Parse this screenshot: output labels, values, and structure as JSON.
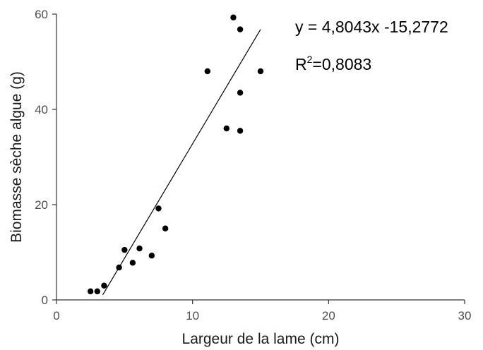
{
  "chart_data": {
    "type": "scatter",
    "title": "",
    "xlabel": "Largeur de la lame (cm)",
    "ylabel": "Biomasse sèche algue (g)",
    "xlim": [
      0,
      30
    ],
    "ylim": [
      0,
      60
    ],
    "x_ticks": [
      0,
      10,
      20,
      30
    ],
    "y_ticks": [
      0,
      20,
      40,
      60
    ],
    "x_tick_labels": [
      "0",
      "10",
      "20",
      "30"
    ],
    "y_tick_labels": [
      "0",
      "20",
      "40",
      "60"
    ],
    "grid": false,
    "series": [
      {
        "points": [
          {
            "x": 2.5,
            "y": 1.8
          },
          {
            "x": 3.0,
            "y": 1.8
          },
          {
            "x": 3.5,
            "y": 3.0
          },
          {
            "x": 4.6,
            "y": 6.8
          },
          {
            "x": 5.0,
            "y": 10.5
          },
          {
            "x": 5.6,
            "y": 7.8
          },
          {
            "x": 6.1,
            "y": 10.8
          },
          {
            "x": 7.0,
            "y": 9.3
          },
          {
            "x": 7.5,
            "y": 19.2
          },
          {
            "x": 8.0,
            "y": 15.0
          },
          {
            "x": 11.1,
            "y": 48.0
          },
          {
            "x": 12.5,
            "y": 36.0
          },
          {
            "x": 13.0,
            "y": 59.3
          },
          {
            "x": 13.5,
            "y": 56.8
          },
          {
            "x": 13.5,
            "y": 43.5
          },
          {
            "x": 13.5,
            "y": 35.5
          },
          {
            "x": 15.0,
            "y": 48.0
          }
        ],
        "color": "#000000"
      }
    ],
    "regression": {
      "slope": 4.8043,
      "intercept": -15.2772,
      "x_range": [
        3.4,
        15.0
      ],
      "color": "#000000"
    },
    "annotations": {
      "equation": "y = 4,8043x -15,2772",
      "r2_prefix": "R",
      "r2_exponent": "2",
      "r2_value": "=0,8083"
    }
  }
}
